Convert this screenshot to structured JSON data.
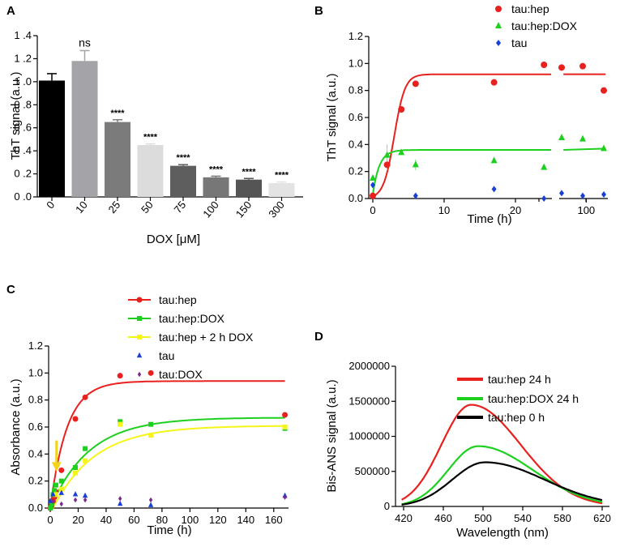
{
  "panels": {
    "A": "A",
    "B": "B",
    "C": "C",
    "D": "D"
  },
  "colors": {
    "red": "#e8201e",
    "green": "#1ed01e",
    "yellow": "#f5f51a",
    "blue": "#1a3fd6",
    "purple": "#7a2a8a",
    "black": "#000000",
    "error": "#f2a8a8"
  },
  "chart_data": [
    {
      "panel": "A",
      "type": "bar",
      "title": "",
      "xlabel": "DOX [μM]",
      "ylabel": "ThT signal (a.u.)",
      "ylim": [
        0,
        1.4
      ],
      "yticks": [
        "0 .0",
        "0 .2",
        "0 .4",
        "0 .6",
        "0 .8",
        "1 .0",
        "1 .2",
        "1 .4"
      ],
      "categories": [
        "0",
        "10",
        "25",
        "50",
        "75",
        "100",
        "150",
        "300"
      ],
      "values": [
        1.01,
        1.18,
        0.65,
        0.45,
        0.27,
        0.17,
        0.15,
        0.12
      ],
      "errors": [
        0.06,
        0.09,
        0.02,
        0.01,
        0.01,
        0.01,
        0.01,
        0.01
      ],
      "bar_colors": [
        "#000000",
        "#a3a3a8",
        "#7b7b7b",
        "#dcdcdc",
        "#5e5e5e",
        "#777777",
        "#555555",
        "#e3e3e3"
      ],
      "annotations": [
        "",
        "ns",
        "****",
        "****",
        "****",
        "****",
        "****",
        "****"
      ]
    },
    {
      "panel": "B",
      "type": "scatter",
      "xlabel": "Time (h)",
      "ylabel": "ThT signal (a.u.)",
      "ylim": [
        0,
        1.2
      ],
      "yticks": [
        "0.0",
        "0.2",
        "0.4",
        "0.6",
        "0.8",
        "1.0",
        "1.2"
      ],
      "xticks": [
        "0",
        "10",
        "20",
        "100"
      ],
      "legend": [
        "tau:hep",
        "tau:hep:DOX",
        "tau"
      ],
      "series": [
        {
          "name": "tau:hep",
          "segment1_x": [
            0,
            2,
            4,
            6,
            17,
            24
          ],
          "segment1_y": [
            0.02,
            0.25,
            0.66,
            0.85,
            0.86,
            0.99
          ],
          "segment2_x": [
            72,
            96,
            120
          ],
          "segment2_y": [
            0.97,
            0.98,
            0.8
          ],
          "plateau": 0.92
        },
        {
          "name": "tau:hep:DOX",
          "segment1_x": [
            0,
            2,
            4,
            6,
            17,
            24
          ],
          "segment1_y": [
            0.15,
            0.32,
            0.34,
            0.25,
            0.28,
            0.23
          ],
          "segment2_x": [
            72,
            96,
            120
          ],
          "segment2_y": [
            0.45,
            0.44,
            0.37
          ],
          "plateau": 0.36
        },
        {
          "name": "tau",
          "segment1_x": [
            0,
            6,
            17,
            24
          ],
          "segment1_y": [
            0.1,
            0.02,
            0.07,
            0.0
          ],
          "segment2_x": [
            72,
            96,
            120
          ],
          "segment2_y": [
            0.04,
            0.02,
            0.03
          ]
        }
      ]
    },
    {
      "panel": "C",
      "type": "scatter",
      "xlabel": "Time (h)",
      "ylabel": "Absorbance (a.u.)",
      "xlim": [
        0,
        170
      ],
      "ylim": [
        0,
        1.2
      ],
      "yticks": [
        "0.0",
        "0.2",
        "0.4",
        "0.6",
        "0.8",
        "1.0",
        "1.2"
      ],
      "xticks": [
        "0",
        "20",
        "40",
        "60",
        "80",
        "100",
        "120",
        "140",
        "160"
      ],
      "legend": [
        "tau:hep",
        "tau:hep:DOX",
        "tau:hep + 2 h DOX",
        "tau",
        "tau:DOX"
      ],
      "series": [
        {
          "name": "tau:hep",
          "x": [
            0,
            1,
            2,
            3,
            4,
            8,
            18,
            25,
            50,
            72,
            168
          ],
          "y": [
            0.0,
            0.02,
            0.05,
            0.08,
            0.12,
            0.28,
            0.66,
            0.82,
            0.98,
            1.0,
            0.69
          ],
          "plateau": 0.94
        },
        {
          "name": "tau:hep:DOX",
          "x": [
            0,
            1,
            2,
            3,
            4,
            8,
            18,
            25,
            50,
            72,
            168
          ],
          "y": [
            0.0,
            0.03,
            0.1,
            0.13,
            0.17,
            0.2,
            0.3,
            0.44,
            0.64,
            0.62,
            0.59
          ],
          "plateau": 0.67
        },
        {
          "name": "tau:hep + 2 h DOX",
          "x": [
            4,
            8,
            18,
            25,
            50,
            72,
            168
          ],
          "y": [
            0.1,
            0.14,
            0.26,
            0.35,
            0.62,
            0.54,
            0.6
          ],
          "plateau": 0.61
        },
        {
          "name": "tau",
          "x": [
            0,
            2,
            8,
            18,
            25,
            50,
            72,
            168
          ],
          "y": [
            0.05,
            0.1,
            0.11,
            0.1,
            0.09,
            0.03,
            0.02,
            0.09
          ]
        },
        {
          "name": "tau:DOX",
          "x": [
            2,
            8,
            18,
            25,
            50,
            72,
            168
          ],
          "y": [
            0.05,
            0.03,
            0.06,
            0.06,
            0.07,
            0.06,
            0.08
          ]
        }
      ],
      "annotations": [
        "yellow arrow at t = 2 h (DOX addition)"
      ]
    },
    {
      "panel": "D",
      "type": "line",
      "xlabel": "Wavelength (nm)",
      "ylabel": "Bis-ANS signal (a.u.)",
      "xlim": [
        420,
        620
      ],
      "ylim": [
        0,
        2000000
      ],
      "yticks": [
        "0",
        "500000",
        "1000000",
        "1500000",
        "2000000"
      ],
      "xticks": [
        "420",
        "460",
        "500",
        "540",
        "580",
        "620"
      ],
      "legend": [
        "tau:hep 24 h",
        "tau:hep:DOX 24 h",
        "tau:hep 0 h"
      ],
      "series": [
        {
          "name": "tau:hep 24 h",
          "peak_x": 488,
          "peak_y": 1450000
        },
        {
          "name": "tau:hep:DOX 24 h",
          "peak_x": 495,
          "peak_y": 860000
        },
        {
          "name": "tau:hep 0 h",
          "peak_x": 502,
          "peak_y": 630000
        }
      ]
    }
  ]
}
